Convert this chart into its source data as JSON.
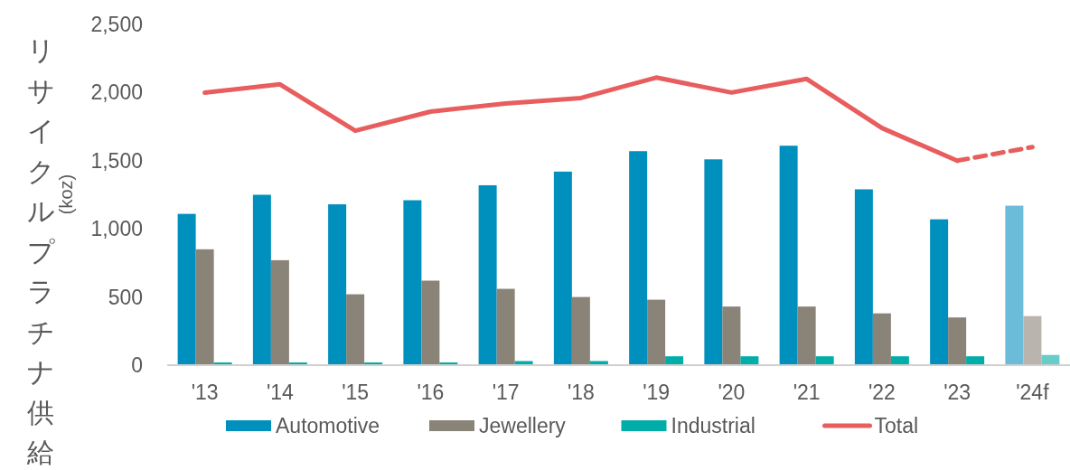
{
  "chart_data": {
    "type": "bar",
    "ylabel": "リサイクルプラチナ供給",
    "annotations": [
      "(koz)"
    ],
    "categories": [
      "'13",
      "'14",
      "'15",
      "'16",
      "'17",
      "'18",
      "'19",
      "'20",
      "'21",
      "'22",
      "'23",
      "'24f"
    ],
    "series": [
      {
        "name": "Automotive",
        "color": "#0090be",
        "colors": [
          "#0090be",
          "#0090be",
          "#0090be",
          "#0090be",
          "#0090be",
          "#0090be",
          "#0090be",
          "#0090be",
          "#0090be",
          "#0090be",
          "#0090be",
          "#6bbcd8"
        ],
        "values": [
          1110,
          1250,
          1180,
          1210,
          1320,
          1420,
          1570,
          1510,
          1610,
          1290,
          1070,
          1170
        ]
      },
      {
        "name": "Jewellery",
        "color": "#8a8378",
        "colors": [
          "#8a8378",
          "#8a8378",
          "#8a8378",
          "#8a8378",
          "#8a8378",
          "#8a8378",
          "#8a8378",
          "#8a8378",
          "#8a8378",
          "#8a8378",
          "#8a8378",
          "#b9b5ae"
        ],
        "values": [
          850,
          770,
          520,
          620,
          560,
          500,
          480,
          430,
          430,
          380,
          350,
          360
        ]
      },
      {
        "name": "Industrial",
        "color": "#00ada8",
        "colors": [
          "#00ada8",
          "#00ada8",
          "#00ada8",
          "#00ada8",
          "#00ada8",
          "#00ada8",
          "#00ada8",
          "#00ada8",
          "#00ada8",
          "#00ada8",
          "#00ada8",
          "#66cdc9"
        ],
        "values": [
          20,
          20,
          20,
          20,
          30,
          30,
          65,
          65,
          65,
          65,
          65,
          75
        ]
      },
      {
        "name": "Total",
        "type": "line",
        "color": "#e85d5d",
        "line_style": "solid",
        "values": [
          2000,
          2060,
          1720,
          1860,
          1920,
          1960,
          2110,
          2000,
          2100,
          1740,
          1500,
          null
        ]
      },
      {
        "type": "line",
        "color": "#e85d5d",
        "line_style": "dashed",
        "values": [
          null,
          null,
          null,
          null,
          null,
          null,
          null,
          null,
          null,
          null,
          1500,
          1600
        ]
      }
    ],
    "ylim": [
      0,
      2500
    ],
    "yticks": [
      {
        "value": 0,
        "label": "0"
      },
      {
        "value": 500,
        "label": "500"
      },
      {
        "value": 1000,
        "label": "1,000"
      },
      {
        "value": 1500,
        "label": "1,500"
      },
      {
        "value": 2000,
        "label": "2,000"
      },
      {
        "value": 2500,
        "label": "2,500"
      }
    ],
    "grid": false,
    "legend": "bottom"
  }
}
